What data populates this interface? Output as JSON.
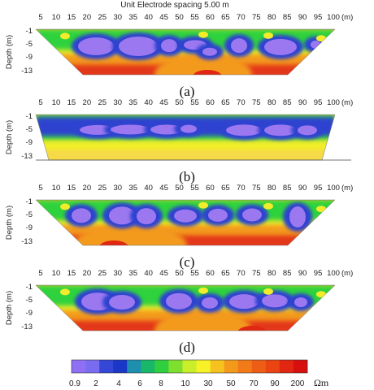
{
  "header": {
    "title": "Unit Electrode spacing 5.00 m"
  },
  "axes": {
    "x_ticks": [
      "5",
      "10",
      "15",
      "20",
      "25",
      "30",
      "35",
      "40",
      "45",
      "50",
      "55",
      "60",
      "65",
      "70",
      "75",
      "80",
      "85",
      "90",
      "95",
      "100"
    ],
    "x_unit": "(m)",
    "y_ticks": [
      "-1",
      "-5",
      "-9",
      "-13"
    ],
    "ylabel": "Depth (m)"
  },
  "panels": [
    {
      "caption": "(a)"
    },
    {
      "caption": "(b)"
    },
    {
      "caption": "(c)"
    },
    {
      "caption": "(d)"
    }
  ],
  "colorbar": {
    "labels": [
      "0.9",
      "2",
      "4",
      "6",
      "8",
      "10",
      "30",
      "50",
      "70",
      "90",
      "200"
    ],
    "unit": "Ωm",
    "colors": [
      "#8f70f5",
      "#7a6cf0",
      "#3447d6",
      "#1a37c7",
      "#1f8fb0",
      "#19b76a",
      "#2fcf3f",
      "#7fdf2f",
      "#c9ef2a",
      "#f7f228",
      "#f7c21d",
      "#f39a1b",
      "#f27a18",
      "#ee5d15",
      "#e94412",
      "#e12612",
      "#d80f0f"
    ]
  },
  "palette": {
    "purple": "#9b78f0",
    "blue": "#2f43d0",
    "cyan": "#1fa0a0",
    "green": "#2fd23e",
    "yellow": "#f2ec2a",
    "orange": "#f39a1b",
    "red": "#e3371a"
  }
}
